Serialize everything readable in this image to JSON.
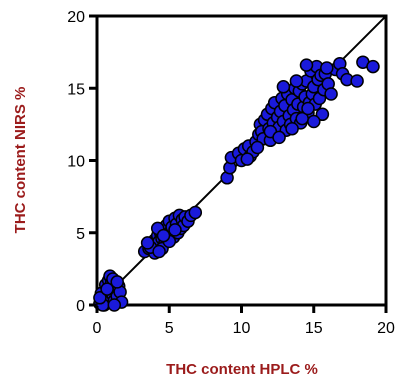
{
  "chart_data": {
    "type": "scatter",
    "title": "",
    "xlabel": "THC content HPLC %",
    "ylabel": "THC content NIRS %",
    "xlim": [
      0,
      20
    ],
    "ylim": [
      0,
      20
    ],
    "xticks": [
      "0",
      "5",
      "10",
      "15",
      "20"
    ],
    "yticks": [
      "0",
      "5",
      "10",
      "15",
      "20"
    ],
    "grid": false,
    "legend": "none",
    "identity_line": true,
    "colors": {
      "marker_fill": "#1a1adb",
      "marker_edge": "#000000",
      "axis_title": "#9b1b1b",
      "line": "#000000"
    },
    "series": [
      {
        "points": [
          [
            0.2,
            0.1
          ],
          [
            0.4,
            0.3
          ],
          [
            0.5,
            0.0
          ],
          [
            0.6,
            0.5
          ],
          [
            0.7,
            0.2
          ],
          [
            0.8,
            0.9
          ],
          [
            0.9,
            0.4
          ],
          [
            1.0,
            1.2
          ],
          [
            1.1,
            0.7
          ],
          [
            1.2,
            0.3
          ],
          [
            1.3,
            1.0
          ],
          [
            1.4,
            0.6
          ],
          [
            0.3,
            0.8
          ],
          [
            0.6,
            1.4
          ],
          [
            0.8,
            1.7
          ],
          [
            0.9,
            2.0
          ],
          [
            1.0,
            1.5
          ],
          [
            1.5,
            1.3
          ],
          [
            1.6,
            0.9
          ],
          [
            0.4,
            0.0
          ],
          [
            1.7,
            0.2
          ],
          [
            0.2,
            0.5
          ],
          [
            1.1,
            1.8
          ],
          [
            0.7,
            1.1
          ],
          [
            1.4,
            1.6
          ],
          [
            1.2,
            0.0
          ],
          [
            3.3,
            3.7
          ],
          [
            3.6,
            3.9
          ],
          [
            3.8,
            4.2
          ],
          [
            3.9,
            3.8
          ],
          [
            4.0,
            4.5
          ],
          [
            4.1,
            4.1
          ],
          [
            4.2,
            4.8
          ],
          [
            4.3,
            4.4
          ],
          [
            4.4,
            5.0
          ],
          [
            4.5,
            4.6
          ],
          [
            4.6,
            5.2
          ],
          [
            4.7,
            4.3
          ],
          [
            4.8,
            5.5
          ],
          [
            4.9,
            4.9
          ],
          [
            5.0,
            5.8
          ],
          [
            5.1,
            5.1
          ],
          [
            5.2,
            5.4
          ],
          [
            5.3,
            4.7
          ],
          [
            5.4,
            6.0
          ],
          [
            5.5,
            5.6
          ],
          [
            5.6,
            5.0
          ],
          [
            5.7,
            6.2
          ],
          [
            5.8,
            5.3
          ],
          [
            5.9,
            5.9
          ],
          [
            6.0,
            5.5
          ],
          [
            6.1,
            6.1
          ],
          [
            6.3,
            5.8
          ],
          [
            6.5,
            6.2
          ],
          [
            6.8,
            6.4
          ],
          [
            4.0,
            3.6
          ],
          [
            3.7,
            4.0
          ],
          [
            4.5,
            3.9
          ],
          [
            5.0,
            4.4
          ],
          [
            4.2,
            5.3
          ],
          [
            5.4,
            5.2
          ],
          [
            4.6,
            4.8
          ],
          [
            3.5,
            4.3
          ],
          [
            4.3,
            3.7
          ],
          [
            9.0,
            8.8
          ],
          [
            9.2,
            9.5
          ],
          [
            9.3,
            10.2
          ],
          [
            9.8,
            10.5
          ],
          [
            10.0,
            10.0
          ],
          [
            10.2,
            10.8
          ],
          [
            10.5,
            11.0
          ],
          [
            10.6,
            10.3
          ],
          [
            10.8,
            10.6
          ],
          [
            11.0,
            11.3
          ],
          [
            11.2,
            11.8
          ],
          [
            11.3,
            12.5
          ],
          [
            11.4,
            12.0
          ],
          [
            11.5,
            11.5
          ],
          [
            11.6,
            12.8
          ],
          [
            11.8,
            13.2
          ],
          [
            11.9,
            12.2
          ],
          [
            12.0,
            11.4
          ],
          [
            12.1,
            13.6
          ],
          [
            12.2,
            12.6
          ],
          [
            12.3,
            14.0
          ],
          [
            12.4,
            11.9
          ],
          [
            12.5,
            13.0
          ],
          [
            12.6,
            12.3
          ],
          [
            12.7,
            13.4
          ],
          [
            12.8,
            14.3
          ],
          [
            12.9,
            12.7
          ],
          [
            13.0,
            13.8
          ],
          [
            13.1,
            12.1
          ],
          [
            13.2,
            14.6
          ],
          [
            13.3,
            13.1
          ],
          [
            13.4,
            12.5
          ],
          [
            13.5,
            14.2
          ],
          [
            13.6,
            13.5
          ],
          [
            13.7,
            15.0
          ],
          [
            13.8,
            12.9
          ],
          [
            13.9,
            13.9
          ],
          [
            14.0,
            14.8
          ],
          [
            14.1,
            12.6
          ],
          [
            14.2,
            15.3
          ],
          [
            14.3,
            13.7
          ],
          [
            14.4,
            14.4
          ],
          [
            14.5,
            15.5
          ],
          [
            14.6,
            13.3
          ],
          [
            14.7,
            14.0
          ],
          [
            14.8,
            16.2
          ],
          [
            14.9,
            14.6
          ],
          [
            15.0,
            15.1
          ],
          [
            15.1,
            13.9
          ],
          [
            15.2,
            16.5
          ],
          [
            15.3,
            15.6
          ],
          [
            15.4,
            14.3
          ],
          [
            15.5,
            15.9
          ],
          [
            15.6,
            13.2
          ],
          [
            15.7,
            14.9
          ],
          [
            15.8,
            16.0
          ],
          [
            16.0,
            15.3
          ],
          [
            16.2,
            14.6
          ],
          [
            16.5,
            16.3
          ],
          [
            16.8,
            16.7
          ],
          [
            17.0,
            16.0
          ],
          [
            17.3,
            15.6
          ],
          [
            18.0,
            15.5
          ],
          [
            18.4,
            16.8
          ],
          [
            19.1,
            16.5
          ],
          [
            12.0,
            12.0
          ],
          [
            12.6,
            11.6
          ],
          [
            13.5,
            12.2
          ],
          [
            14.2,
            12.9
          ],
          [
            14.6,
            13.6
          ],
          [
            11.1,
            10.9
          ],
          [
            10.4,
            10.1
          ],
          [
            15.0,
            12.7
          ],
          [
            13.8,
            15.5
          ],
          [
            14.5,
            16.6
          ],
          [
            12.9,
            15.1
          ],
          [
            15.9,
            16.4
          ]
        ]
      }
    ]
  }
}
